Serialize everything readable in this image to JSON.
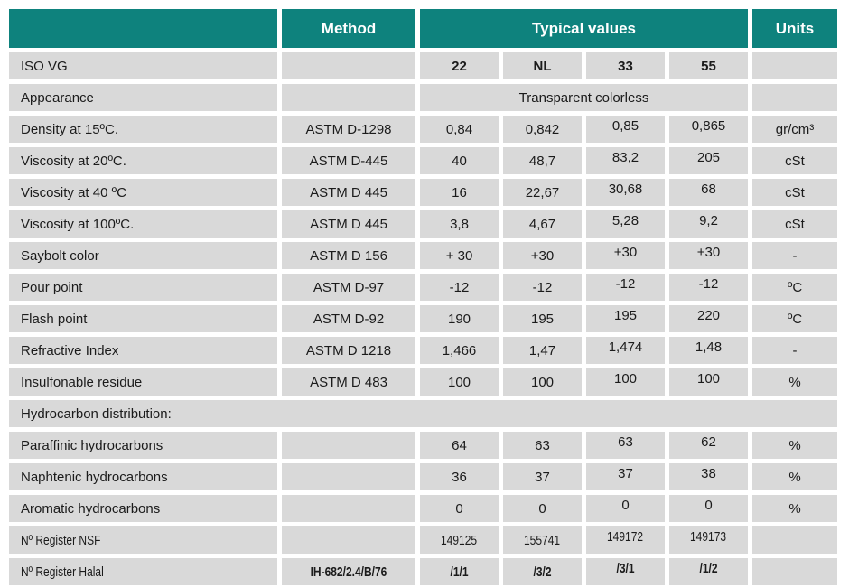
{
  "header": {
    "property_label": "",
    "method": "Method",
    "typical_values": "Typical values",
    "units": "Units"
  },
  "colors": {
    "header_teal": "#0E827D",
    "cell_gray": "#D9D9D9",
    "header_text": "#FFFFFF",
    "body_text": "#1B1B1B"
  },
  "rows": [
    {
      "id": "iso-vg",
      "label": "ISO VG",
      "method": "",
      "values": [
        "22",
        "NL",
        "33",
        "55"
      ],
      "units": "",
      "bold_values": true,
      "raised": false
    },
    {
      "id": "appearance",
      "label": "Appearance",
      "method": "",
      "merged_value": "Transparent colorless",
      "units": ""
    },
    {
      "id": "density-15c",
      "label": "Density at 15ºC.",
      "method": "ASTM D-1298",
      "values": [
        "0,84",
        "0,842",
        "0,85",
        "0,865"
      ],
      "units": "gr/cm³",
      "raised": true
    },
    {
      "id": "viscosity-20c",
      "label": "Viscosity at 20ºC.",
      "method": "ASTM D-445",
      "values": [
        "40",
        "48,7",
        "83,2",
        "205"
      ],
      "units": "cSt",
      "raised": true
    },
    {
      "id": "viscosity-40c",
      "label": "Viscosity at 40 ºC",
      "method": "ASTM D 445",
      "values": [
        "16",
        "22,67",
        "30,68",
        "68"
      ],
      "units": "cSt",
      "raised": true
    },
    {
      "id": "viscosity-100c",
      "label": "Viscosity at 100ºC.",
      "method": "ASTM D 445",
      "values": [
        "3,8",
        "4,67",
        "5,28",
        "9,2"
      ],
      "units": "cSt",
      "raised": true
    },
    {
      "id": "saybolt-color",
      "label": "Saybolt color",
      "method": "ASTM D 156",
      "values": [
        "+ 30",
        "+30",
        "+30",
        "+30"
      ],
      "units": "-",
      "raised": true
    },
    {
      "id": "pour-point",
      "label": "Pour point",
      "method": "ASTM D-97",
      "values": [
        "-12",
        "-12",
        "-12",
        "-12"
      ],
      "units": "ºC",
      "raised": true
    },
    {
      "id": "flash-point",
      "label": "Flash point",
      "method": "ASTM D-92",
      "values": [
        "190",
        "195",
        "195",
        "220"
      ],
      "units": "ºC",
      "raised": true
    },
    {
      "id": "refractive-index",
      "label": "Refractive Index",
      "method": "ASTM D 1218",
      "values": [
        "1,466",
        "1,47",
        "1,474",
        "1,48"
      ],
      "units": "-",
      "raised": true
    },
    {
      "id": "insulfonable-residue",
      "label": "Insulfonable residue",
      "method": "ASTM D 483",
      "values": [
        "100",
        "100",
        "100",
        "100"
      ],
      "units": "%",
      "raised": true
    },
    {
      "id": "hydrocarbon-distribution",
      "label": "Hydrocarbon distribution:",
      "full_span": true
    },
    {
      "id": "paraffinic-hydrocarbons",
      "label": "Paraffinic hydrocarbons",
      "method": "",
      "values": [
        "64",
        "63",
        "63",
        "62"
      ],
      "units": "%",
      "raised": true
    },
    {
      "id": "naphtenic-hydrocarbons",
      "label": "Naphtenic hydrocarbons",
      "method": "",
      "values": [
        "36",
        "37",
        "37",
        "38"
      ],
      "units": "%",
      "raised": true
    },
    {
      "id": "aromatic-hydrocarbons",
      "label": "Aromatic hydrocarbons",
      "method": "",
      "values": [
        "0",
        "0",
        "0",
        "0"
      ],
      "units": "%",
      "raised": true
    },
    {
      "id": "register-nsf",
      "label": "Nº Register NSF",
      "method": "",
      "values": [
        "149125",
        "155741",
        "149172",
        "149173"
      ],
      "units": "",
      "condensed": true,
      "raised": true
    },
    {
      "id": "register-halal",
      "label": "Nº Register Halal",
      "method": "IH-682/2.4/B/76",
      "values": [
        "/1/1",
        "/3/2",
        "/3/1",
        "/1/2"
      ],
      "units": "",
      "condensed": true,
      "raised": true,
      "bold_values": true,
      "bold_method": true
    }
  ]
}
